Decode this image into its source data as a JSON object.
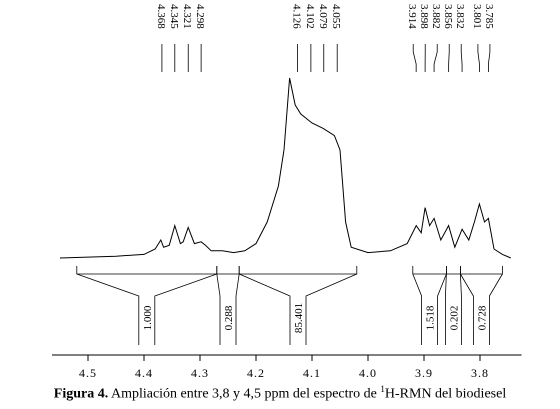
{
  "chart_data": {
    "type": "line",
    "color": "#000000",
    "xlim": [
      4.55,
      3.74
    ],
    "ylim": [
      0,
      100
    ],
    "xticks": [
      4.5,
      4.4,
      4.3,
      4.2,
      4.1,
      {
        "value": 4,
        "label": "4.0"
      },
      3.9,
      3.8
    ],
    "x": [
      4.55,
      4.45,
      4.4,
      4.38,
      4.37,
      4.365,
      4.355,
      4.345,
      4.335,
      4.33,
      4.321,
      4.31,
      4.298,
      4.29,
      4.28,
      4.26,
      4.24,
      4.22,
      4.2,
      4.18,
      4.16,
      4.15,
      4.14,
      4.13,
      4.12,
      4.1,
      4.08,
      4.06,
      4.05,
      4.04,
      4.03,
      4.0,
      3.96,
      3.93,
      3.914,
      3.905,
      3.898,
      3.89,
      3.882,
      3.87,
      3.856,
      3.845,
      3.832,
      3.82,
      3.81,
      3.801,
      3.792,
      3.785,
      3.775,
      3.76,
      3.745
    ],
    "values": [
      0,
      1,
      2,
      5,
      10,
      6,
      7,
      18,
      8,
      9,
      17,
      8,
      9,
      7,
      4,
      4,
      3,
      4,
      8,
      20,
      40,
      60,
      100,
      85,
      80,
      75,
      72,
      68,
      60,
      20,
      6,
      3,
      4,
      8,
      18,
      14,
      28,
      18,
      22,
      10,
      18,
      6,
      16,
      10,
      20,
      30,
      20,
      22,
      5,
      2,
      0
    ],
    "peaks": [
      4.368,
      4.345,
      4.321,
      4.298,
      4.126,
      4.102,
      4.079,
      4.055,
      3.914,
      3.898,
      3.882,
      3.856,
      3.832,
      3.801,
      3.785
    ],
    "integrals": {
      "ranges": [
        [
          4.52,
          4.27
        ],
        [
          4.27,
          4.23
        ],
        [
          4.23,
          4.02
        ],
        [
          3.92,
          3.86
        ],
        [
          3.86,
          3.835
        ],
        [
          3.835,
          3.76
        ]
      ],
      "values": [
        1,
        0.288,
        85.401,
        1.518,
        0.202,
        0.728
      ],
      "value_labels": [
        "1.000",
        "0.288",
        "85.401",
        "1.518",
        "0.202",
        "0.728"
      ]
    },
    "caption": {
      "label": "Figura 4.",
      "text_before": " Ampliación entre 3,8 y 4,5 ppm del espectro de ",
      "superscript": "1",
      "text_after": "H-RMN del biodiesel"
    }
  }
}
